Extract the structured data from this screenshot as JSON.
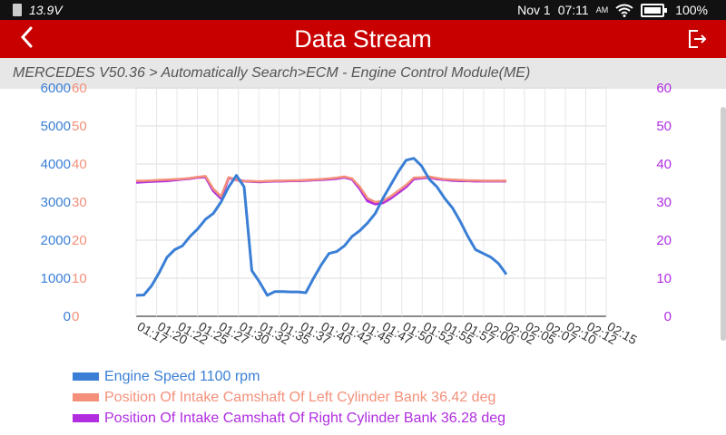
{
  "status_bar": {
    "voltage": "13.9V",
    "date": "Nov 1",
    "time": "07:11",
    "ampm": "AM",
    "battery": "100%"
  },
  "header": {
    "title": "Data Stream",
    "back_icon": "chevron-left-icon",
    "exit_icon": "exit-icon"
  },
  "breadcrumb": "MERCEDES V50.36 > Automatically Search>ECM - Engine Control Module(ME)",
  "colors": {
    "header_bg": "#c80000",
    "series_rpm": "#3a7fd5",
    "series_left": "#f4907a",
    "series_right": "#b02de0"
  },
  "chart_data": {
    "type": "line",
    "left_axis_blue": {
      "ticks": [
        "6000",
        "5000",
        "4000",
        "3000",
        "2000",
        "1000",
        "0"
      ],
      "range": [
        0,
        6000
      ]
    },
    "left_axis_orange": {
      "ticks": [
        "60",
        "50",
        "40",
        "30",
        "20",
        "10",
        "0"
      ],
      "range": [
        0,
        60
      ]
    },
    "right_axis": {
      "ticks": [
        "60",
        "50",
        "40",
        "30",
        "20",
        "10",
        "0"
      ],
      "range": [
        0,
        60
      ]
    },
    "x_tick_labels": [
      "01:17",
      "01:20",
      "01:22",
      "01:25",
      "01:27",
      "01:30",
      "01:32",
      "01:35",
      "01:37",
      "01:40",
      "01:42",
      "01:45",
      "01:47",
      "01:50",
      "01:52",
      "01:55",
      "01:57",
      "02:00",
      "02:02",
      "02:05",
      "02:07",
      "02:10",
      "02:12",
      "02:15"
    ],
    "grid": true,
    "legend_position": "bottom-left",
    "series": [
      {
        "name": "Engine Speed",
        "value_label": "1100",
        "unit": "rpm",
        "axis": "left",
        "values": [
          550,
          560,
          800,
          1150,
          1550,
          1750,
          1850,
          2100,
          2300,
          2550,
          2700,
          3000,
          3400,
          3700,
          3400,
          1200,
          900,
          550,
          650,
          650,
          640,
          640,
          620,
          1000,
          1350,
          1650,
          1700,
          1850,
          2100,
          2250,
          2450,
          2700,
          3100,
          3450,
          3800,
          4100,
          4150,
          3950,
          3600,
          3400,
          3100,
          2850,
          2500,
          2100,
          1750,
          1650,
          1550,
          1380,
          1100
        ]
      },
      {
        "name": "Position Of Intake Camshaft Of Left Cylinder Bank",
        "value_label": "36.42",
        "unit": "deg",
        "axis": "right",
        "values": [
          35.6,
          35.6,
          35.7,
          35.8,
          35.9,
          36.0,
          36.1,
          36.3,
          36.6,
          36.8,
          33.5,
          31.5,
          36.5,
          35.8,
          35.5,
          35.5,
          35.4,
          35.5,
          35.6,
          35.6,
          35.7,
          35.7,
          35.8,
          35.9,
          36.0,
          36.2,
          36.4,
          36.7,
          36.2,
          34.0,
          31.0,
          30.0,
          30.3,
          31.5,
          33.0,
          34.5,
          36.4,
          36.5,
          36.7,
          36.3,
          36.0,
          35.9,
          35.8,
          35.7,
          35.7,
          35.6,
          35.6,
          35.6,
          35.6
        ]
      },
      {
        "name": "Position Of Intake Camshaft Of Right Cylinder Bank",
        "value_label": "36.28",
        "unit": "deg",
        "axis": "right",
        "values": [
          35.2,
          35.3,
          35.4,
          35.5,
          35.6,
          35.8,
          36.0,
          36.2,
          36.5,
          36.6,
          33.0,
          31.0,
          36.4,
          35.8,
          35.5,
          35.4,
          35.3,
          35.4,
          35.5,
          35.5,
          35.6,
          35.6,
          35.7,
          35.8,
          35.9,
          36.0,
          36.2,
          36.5,
          36.0,
          33.5,
          30.3,
          29.5,
          29.8,
          31.0,
          32.5,
          34.0,
          36.1,
          36.3,
          36.5,
          36.1,
          35.9,
          35.7,
          35.6,
          35.6,
          35.5,
          35.5,
          35.5,
          35.5,
          35.5
        ]
      }
    ]
  }
}
